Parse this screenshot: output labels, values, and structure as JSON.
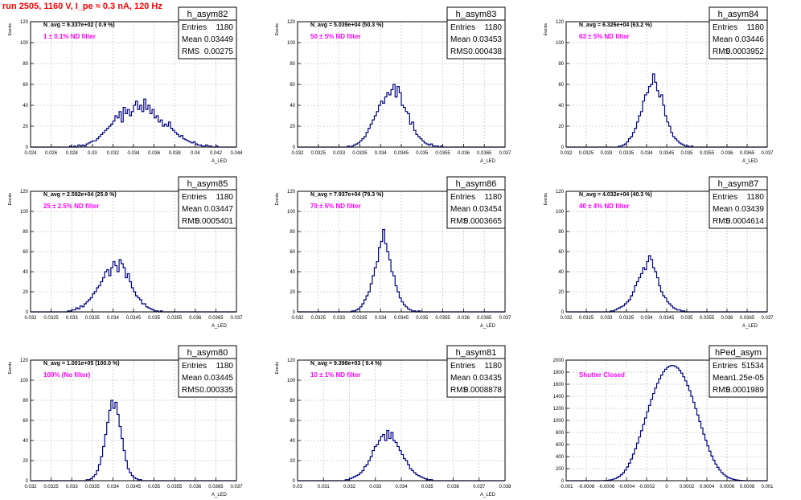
{
  "page_title": "run 2505,  1160 V, I_pe ≈ 0.3 nA, 120 Hz",
  "colors": {
    "title": "#ff0000",
    "annotation": "#ff00ff",
    "histogram": "#000080",
    "grid": "#c8c8c8",
    "stats_box_border": "#000000"
  },
  "chart_data": [
    {
      "type": "bar",
      "name": "h_asym82",
      "ylabel": "Events",
      "xlabel": "A_LED",
      "xlim": [
        0.024,
        0.044
      ],
      "ylim": [
        0,
        120
      ],
      "xticks": [
        "0.024",
        "0.026",
        "0.028",
        "0.03",
        "0.032",
        "0.034",
        "0.036",
        "0.038",
        "0.04",
        "0.042",
        "0.044"
      ],
      "yticks": [
        "0",
        "20",
        "40",
        "60",
        "80",
        "100",
        "120"
      ],
      "navg_label": "N_avg = 9.337e+02 ( 0.9 %)",
      "annotation": "1 ± 0.1% ND filter",
      "stats": {
        "entries_label": "Entries",
        "entries": "1180",
        "mean_label": "Mean",
        "mean": "0.03449",
        "rms_label": "RMS",
        "rms": "0.00275"
      },
      "bin_lo": 0.024,
      "bin_width": 0.0002,
      "values": [
        0,
        0,
        0,
        0,
        0,
        0,
        0,
        0,
        0,
        0,
        0,
        0,
        0,
        0,
        0,
        0,
        0,
        0,
        0,
        1,
        0,
        1,
        0,
        2,
        1,
        2,
        1,
        3,
        4,
        5,
        6,
        6,
        8,
        10,
        12,
        14,
        16,
        18,
        20,
        22,
        25,
        30,
        28,
        34,
        24,
        38,
        32,
        36,
        30,
        34,
        40,
        44,
        36,
        40,
        34,
        46,
        36,
        40,
        32,
        36,
        28,
        30,
        24,
        26,
        20,
        22,
        20,
        24,
        18,
        16,
        14,
        12,
        10,
        11,
        8,
        7,
        6,
        5,
        4,
        5,
        3,
        2,
        2,
        1,
        1,
        2,
        1,
        1,
        0,
        0,
        1,
        0,
        0,
        0,
        0,
        0,
        0,
        0,
        0,
        0
      ]
    },
    {
      "type": "bar",
      "name": "h_asym83",
      "ylabel": "Events",
      "xlabel": "A_LED",
      "xlim": [
        0.032,
        0.037
      ],
      "ylim": [
        0,
        120
      ],
      "xticks": [
        "0.032",
        "0.0325",
        "0.033",
        "0.0335",
        "0.034",
        "0.0345",
        "0.035",
        "0.0355",
        "0.036",
        "0.0365",
        "0.037"
      ],
      "yticks": [
        "0",
        "20",
        "40",
        "60",
        "80",
        "100",
        "120"
      ],
      "navg_label": "N_avg = 5.039e+04 (50.3 %)",
      "annotation": "50 ± 5% ND filter",
      "stats": {
        "entries_label": "Entries",
        "entries": "1180",
        "mean_label": "Mean",
        "mean": "0.03453",
        "rms_label": "RMS",
        "rms": "0.000438"
      },
      "bin_lo": 0.032,
      "bin_width": 5e-05,
      "values": [
        0,
        0,
        0,
        0,
        0,
        0,
        0,
        0,
        0,
        0,
        0,
        0,
        0,
        0,
        0,
        0,
        0,
        0,
        0,
        0,
        0,
        0,
        0,
        0,
        1,
        0,
        1,
        2,
        3,
        4,
        6,
        8,
        10,
        14,
        18,
        22,
        26,
        30,
        34,
        40,
        44,
        42,
        48,
        52,
        50,
        55,
        60,
        48,
        58,
        52,
        40,
        38,
        34,
        32,
        22,
        24,
        16,
        12,
        10,
        8,
        6,
        4,
        3,
        2,
        3,
        1,
        1,
        1,
        0,
        1,
        0,
        0,
        0,
        0,
        0,
        0,
        0,
        0,
        0,
        0,
        0,
        0,
        0,
        0,
        0,
        0,
        0,
        0,
        0,
        0,
        0,
        0,
        0,
        0,
        0,
        0,
        0,
        0,
        0,
        0
      ]
    },
    {
      "type": "bar",
      "name": "h_asym84",
      "ylabel": "Events",
      "xlabel": "A_LED",
      "xlim": [
        0.032,
        0.037
      ],
      "ylim": [
        0,
        120
      ],
      "xticks": [
        "0.032",
        "0.0325",
        "0.033",
        "0.0335",
        "0.034",
        "0.0345",
        "0.035",
        "0.0355",
        "0.036",
        "0.0365",
        "0.037"
      ],
      "yticks": [
        "0",
        "20",
        "40",
        "60",
        "80",
        "100",
        "120"
      ],
      "navg_label": "N_avg = 6.326e+04 (63.2 %)",
      "annotation": "63 ± 5% ND filter",
      "stats": {
        "entries_label": "Entries",
        "entries": "1180",
        "mean_label": "Mean",
        "mean": "0.03446",
        "rms_label": "RMS",
        "rms": "0.0003952"
      },
      "bin_lo": 0.032,
      "bin_width": 5e-05,
      "values": [
        0,
        0,
        0,
        0,
        0,
        0,
        0,
        0,
        0,
        0,
        0,
        0,
        0,
        0,
        0,
        0,
        0,
        0,
        0,
        0,
        0,
        0,
        0,
        0,
        0,
        0,
        1,
        1,
        2,
        3,
        5,
        8,
        10,
        14,
        18,
        24,
        30,
        34,
        44,
        50,
        52,
        58,
        60,
        70,
        62,
        54,
        48,
        50,
        40,
        30,
        24,
        20,
        14,
        10,
        8,
        6,
        4,
        3,
        2,
        1,
        1,
        0,
        1,
        0,
        0,
        0,
        0,
        0,
        0,
        0,
        0,
        0,
        0,
        0,
        0,
        0,
        0,
        0,
        0,
        0,
        0,
        0,
        0,
        0,
        0,
        0,
        0,
        0,
        0,
        0,
        0,
        0,
        0,
        0,
        0,
        0,
        0,
        0,
        0,
        0
      ]
    },
    {
      "type": "bar",
      "name": "h_asym85",
      "ylabel": "Events",
      "xlabel": "A_LED",
      "xlim": [
        0.032,
        0.037
      ],
      "ylim": [
        0,
        120
      ],
      "xticks": [
        "0.032",
        "0.0325",
        "0.033",
        "0.0335",
        "0.034",
        "0.0345",
        "0.035",
        "0.0355",
        "0.036",
        "0.0365",
        "0.037"
      ],
      "yticks": [
        "0",
        "20",
        "40",
        "60",
        "80",
        "100",
        "120"
      ],
      "navg_label": "N_avg = 2.592e+04 (25.9 %)",
      "annotation": "25 ± 2.5% ND filter",
      "stats": {
        "entries_label": "Entries",
        "entries": "1180",
        "mean_label": "Mean",
        "mean": "0.03447",
        "rms_label": "RMS",
        "rms": "0.0005401"
      },
      "bin_lo": 0.032,
      "bin_width": 5e-05,
      "values": [
        0,
        0,
        0,
        0,
        0,
        0,
        0,
        0,
        0,
        0,
        0,
        0,
        0,
        0,
        0,
        0,
        0,
        0,
        1,
        1,
        2,
        2,
        4,
        3,
        6,
        5,
        8,
        10,
        12,
        14,
        18,
        20,
        24,
        26,
        30,
        34,
        40,
        42,
        36,
        44,
        50,
        46,
        40,
        52,
        48,
        44,
        34,
        38,
        30,
        24,
        20,
        16,
        14,
        12,
        8,
        8,
        5,
        4,
        3,
        2,
        1,
        1,
        0,
        1,
        0,
        0,
        0,
        0,
        0,
        0,
        0,
        0,
        0,
        0,
        0,
        0,
        0,
        0,
        0,
        0,
        0,
        0,
        0,
        0,
        0,
        0,
        0,
        0,
        0,
        0,
        0,
        0,
        0,
        0,
        0,
        0,
        0,
        0,
        0,
        0
      ]
    },
    {
      "type": "bar",
      "name": "h_asym86",
      "ylabel": "Events",
      "xlabel": "A_LED",
      "xlim": [
        0.032,
        0.037
      ],
      "ylim": [
        0,
        120
      ],
      "xticks": [
        "0.032",
        "0.0325",
        "0.033",
        "0.0335",
        "0.034",
        "0.0345",
        "0.035",
        "0.0355",
        "0.036",
        "0.0365",
        "0.037"
      ],
      "yticks": [
        "0",
        "20",
        "40",
        "60",
        "80",
        "100",
        "120"
      ],
      "navg_label": "N_avg = 7.937e+04 (79.3 %)",
      "annotation": "79 ± 5% ND filter",
      "stats": {
        "entries_label": "Entries",
        "entries": "1180",
        "mean_label": "Mean",
        "mean": "0.03454",
        "rms_label": "RMS",
        "rms": "0.0003665"
      },
      "bin_lo": 0.032,
      "bin_width": 5e-05,
      "values": [
        0,
        0,
        0,
        0,
        0,
        0,
        0,
        0,
        0,
        0,
        0,
        0,
        0,
        0,
        0,
        0,
        0,
        0,
        0,
        0,
        0,
        0,
        0,
        0,
        0,
        0,
        1,
        1,
        2,
        3,
        5,
        8,
        12,
        16,
        20,
        28,
        36,
        44,
        50,
        64,
        70,
        82,
        68,
        60,
        52,
        40,
        36,
        26,
        20,
        14,
        10,
        7,
        5,
        3,
        2,
        1,
        1,
        0,
        1,
        0,
        0,
        0,
        0,
        0,
        0,
        0,
        0,
        0,
        0,
        0,
        0,
        0,
        0,
        0,
        0,
        0,
        0,
        0,
        0,
        0,
        0,
        0,
        0,
        0,
        0,
        0,
        0,
        0,
        0,
        0,
        0,
        0,
        0,
        0,
        0,
        0,
        0,
        0,
        0,
        0
      ]
    },
    {
      "type": "bar",
      "name": "h_asym87",
      "ylabel": "Events",
      "xlabel": "A_LED",
      "xlim": [
        0.032,
        0.037
      ],
      "ylim": [
        0,
        120
      ],
      "xticks": [
        "0.032",
        "0.0325",
        "0.033",
        "0.0335",
        "0.034",
        "0.0345",
        "0.035",
        "0.0355",
        "0.036",
        "0.0365",
        "0.037"
      ],
      "yticks": [
        "0",
        "20",
        "40",
        "60",
        "80",
        "100",
        "120"
      ],
      "navg_label": "N_avg = 4.032e+04 (40.3 %)",
      "annotation": "40 ± 4% ND filter",
      "stats": {
        "entries_label": "Entries",
        "entries": "1180",
        "mean_label": "Mean",
        "mean": "0.03439",
        "rms_label": "RMS",
        "rms": "0.0004614"
      },
      "bin_lo": 0.032,
      "bin_width": 5e-05,
      "values": [
        0,
        0,
        0,
        0,
        0,
        0,
        0,
        0,
        0,
        0,
        0,
        0,
        0,
        0,
        0,
        0,
        0,
        0,
        0,
        0,
        0,
        0,
        1,
        1,
        2,
        3,
        4,
        5,
        6,
        8,
        10,
        12,
        16,
        20,
        26,
        30,
        34,
        38,
        44,
        42,
        50,
        56,
        52,
        44,
        40,
        34,
        26,
        20,
        16,
        14,
        10,
        8,
        6,
        4,
        3,
        2,
        2,
        1,
        1,
        0,
        0,
        0,
        0,
        0,
        0,
        0,
        0,
        0,
        0,
        0,
        0,
        0,
        0,
        0,
        0,
        0,
        0,
        0,
        0,
        0,
        0,
        0,
        0,
        0,
        0,
        0,
        0,
        0,
        0,
        0,
        0,
        0,
        0,
        0,
        0,
        0,
        0,
        0,
        0,
        0
      ]
    },
    {
      "type": "bar",
      "name": "h_asym80",
      "ylabel": "Events",
      "xlabel": "A_LED",
      "xlim": [
        0.032,
        0.037
      ],
      "ylim": [
        0,
        120
      ],
      "xticks": [
        "0.032",
        "0.0325",
        "0.033",
        "0.0335",
        "0.034",
        "0.0345",
        "0.035",
        "0.0355",
        "0.036",
        "0.0365",
        "0.037"
      ],
      "yticks": [
        "0",
        "20",
        "40",
        "60",
        "80",
        "100",
        "120"
      ],
      "navg_label": "N_avg = 1.001e+05 (100.0 %)",
      "annotation": "100% (No filter)",
      "stats": {
        "entries_label": "Entries",
        "entries": "1180",
        "mean_label": "Mean",
        "mean": "0.03445",
        "rms_label": "RMS",
        "rms": "0.000335"
      },
      "bin_lo": 0.032,
      "bin_width": 5e-05,
      "values": [
        0,
        0,
        0,
        0,
        0,
        0,
        0,
        0,
        0,
        0,
        0,
        0,
        0,
        0,
        0,
        0,
        0,
        0,
        0,
        0,
        0,
        0,
        0,
        0,
        0,
        0,
        0,
        1,
        1,
        2,
        4,
        6,
        10,
        16,
        24,
        34,
        46,
        58,
        70,
        80,
        72,
        78,
        66,
        54,
        42,
        30,
        20,
        12,
        8,
        5,
        3,
        2,
        1,
        1,
        0,
        0,
        0,
        0,
        0,
        0,
        0,
        0,
        0,
        0,
        0,
        0,
        0,
        0,
        0,
        0,
        0,
        0,
        0,
        0,
        0,
        0,
        0,
        0,
        0,
        0,
        0,
        0,
        0,
        0,
        0,
        0,
        0,
        0,
        0,
        0,
        0,
        0,
        0,
        0,
        0,
        0,
        0,
        0,
        0,
        0
      ]
    },
    {
      "type": "bar",
      "name": "h_asym81",
      "ylabel": "Events",
      "xlabel": "A_LED",
      "xlim": [
        0.03,
        0.038
      ],
      "ylim": [
        0,
        120
      ],
      "xticks": [
        "0.03",
        "0.031",
        "0.032",
        "0.033",
        "0.034",
        "0.035",
        "0.036",
        "0.037",
        "0.038"
      ],
      "yticks": [
        "0",
        "20",
        "40",
        "60",
        "80",
        "100",
        "120"
      ],
      "navg_label": "N_avg = 9.398e+03 ( 9.4 %)",
      "annotation": "10 ± 1% ND filter",
      "stats": {
        "entries_label": "Entries",
        "entries": "1180",
        "mean_label": "Mean",
        "mean": "0.03435",
        "rms_label": "RMS",
        "rms": "0.0008878"
      },
      "bin_lo": 0.03,
      "bin_width": 8e-05,
      "values": [
        0,
        0,
        0,
        0,
        0,
        0,
        0,
        0,
        0,
        0,
        0,
        0,
        0,
        0,
        0,
        0,
        0,
        0,
        0,
        0,
        0,
        0,
        0,
        1,
        1,
        2,
        3,
        4,
        5,
        6,
        8,
        10,
        14,
        16,
        20,
        24,
        30,
        34,
        36,
        40,
        44,
        46,
        40,
        50,
        42,
        48,
        40,
        38,
        34,
        30,
        26,
        22,
        20,
        16,
        12,
        10,
        8,
        6,
        5,
        4,
        3,
        2,
        1,
        1,
        1,
        0,
        0,
        0,
        0,
        0,
        0,
        0,
        0,
        0,
        0,
        0,
        0,
        0,
        0,
        0,
        0,
        0,
        0,
        0,
        0,
        0,
        0,
        0,
        0,
        0,
        0,
        0,
        0,
        0,
        0,
        0,
        0,
        0,
        0,
        0
      ]
    },
    {
      "type": "bar",
      "name": "hPed_asym",
      "ylabel": "",
      "xlabel": "",
      "xlim": [
        -0.001,
        0.001
      ],
      "ylim": [
        0,
        2000
      ],
      "xticks": [
        "-0.001",
        "-0.0008",
        "-0.0006",
        "-0.0004",
        "-0.0002",
        "0",
        "0.0002",
        "0.0004",
        "0.0006",
        "0.0008",
        "0.001"
      ],
      "yticks": [
        "0",
        "200",
        "400",
        "600",
        "800",
        "1000",
        "1200",
        "1400",
        "1600",
        "1800",
        "2000"
      ],
      "navg_label": "",
      "annotation": "Shutter Closed",
      "stats": {
        "entries_label": "Entries",
        "entries": "51534",
        "mean_label": "Mean",
        "mean": "1.25e-05",
        "rms_label": "RMS",
        "rms": "0.0001989"
      },
      "bin_lo": -0.001,
      "bin_width": 2e-05,
      "values": [
        0,
        0,
        0,
        0,
        0,
        0,
        0,
        0,
        0,
        0,
        0,
        0,
        0,
        0,
        0,
        0,
        0,
        1,
        2,
        4,
        6,
        10,
        16,
        24,
        36,
        52,
        72,
        98,
        132,
        176,
        228,
        290,
        360,
        442,
        530,
        624,
        724,
        828,
        934,
        1040,
        1146,
        1250,
        1350,
        1446,
        1536,
        1616,
        1688,
        1752,
        1806,
        1848,
        1880,
        1900,
        1910,
        1908,
        1894,
        1868,
        1832,
        1784,
        1724,
        1656,
        1578,
        1494,
        1400,
        1300,
        1196,
        1090,
        982,
        876,
        772,
        672,
        578,
        490,
        410,
        340,
        276,
        222,
        176,
        136,
        104,
        78,
        58,
        42,
        30,
        20,
        14,
        10,
        6,
        4,
        2,
        1,
        1,
        0,
        0,
        0,
        0,
        0,
        0,
        0,
        0,
        0
      ]
    }
  ]
}
